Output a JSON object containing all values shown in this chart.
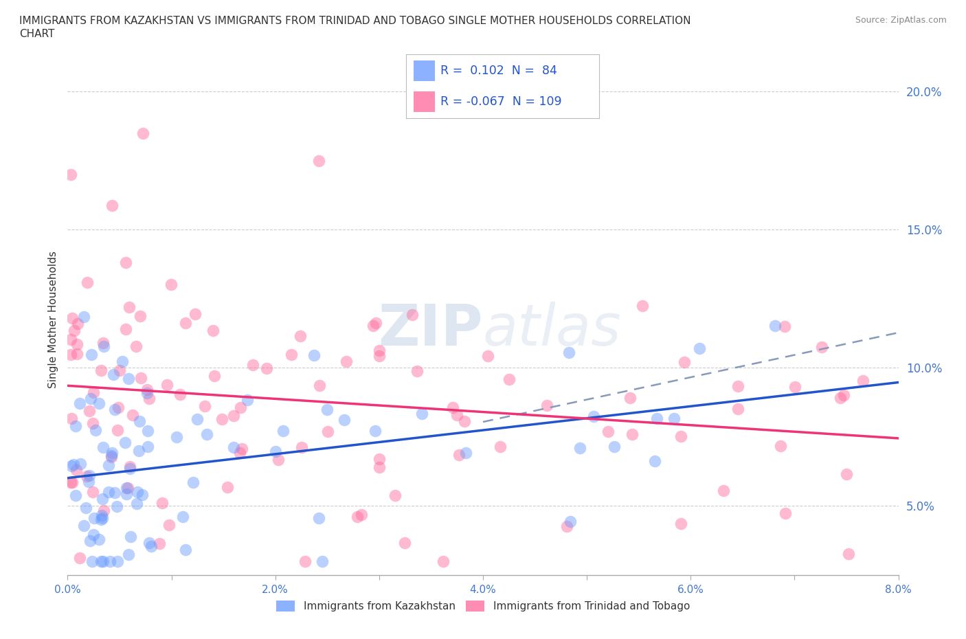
{
  "title_line1": "IMMIGRANTS FROM KAZAKHSTAN VS IMMIGRANTS FROM TRINIDAD AND TOBAGO SINGLE MOTHER HOUSEHOLDS CORRELATION",
  "title_line2": "CHART",
  "source_text": "Source: ZipAtlas.com",
  "ylabel": "Single Mother Households",
  "xlim": [
    0.0,
    0.08
  ],
  "ylim": [
    0.025,
    0.21
  ],
  "xticks": [
    0.0,
    0.01,
    0.02,
    0.03,
    0.04,
    0.05,
    0.06,
    0.07,
    0.08
  ],
  "xticklabels": [
    "0.0%",
    "",
    "2.0%",
    "",
    "4.0%",
    "",
    "6.0%",
    "",
    "8.0%"
  ],
  "ytick_vals": [
    0.05,
    0.1,
    0.15,
    0.2
  ],
  "ytick_labels": [
    "5.0%",
    "10.0%",
    "15.0%",
    "20.0%"
  ],
  "grid_color": "#cccccc",
  "background_color": "#ffffff",
  "color_kazakhstan": "#6699ff",
  "color_trinidad": "#ff6699",
  "line_color_kazakhstan": "#2255cc",
  "line_color_trinidad": "#ee3377",
  "R_kazakhstan": 0.102,
  "N_kazakhstan": 84,
  "R_trinidad": -0.067,
  "N_trinidad": 109,
  "legend_label_kazakhstan": "Immigrants from Kazakhstan",
  "legend_label_trinidad": "Immigrants from Trinidad and Tobago",
  "watermark": "ZIPatlas"
}
